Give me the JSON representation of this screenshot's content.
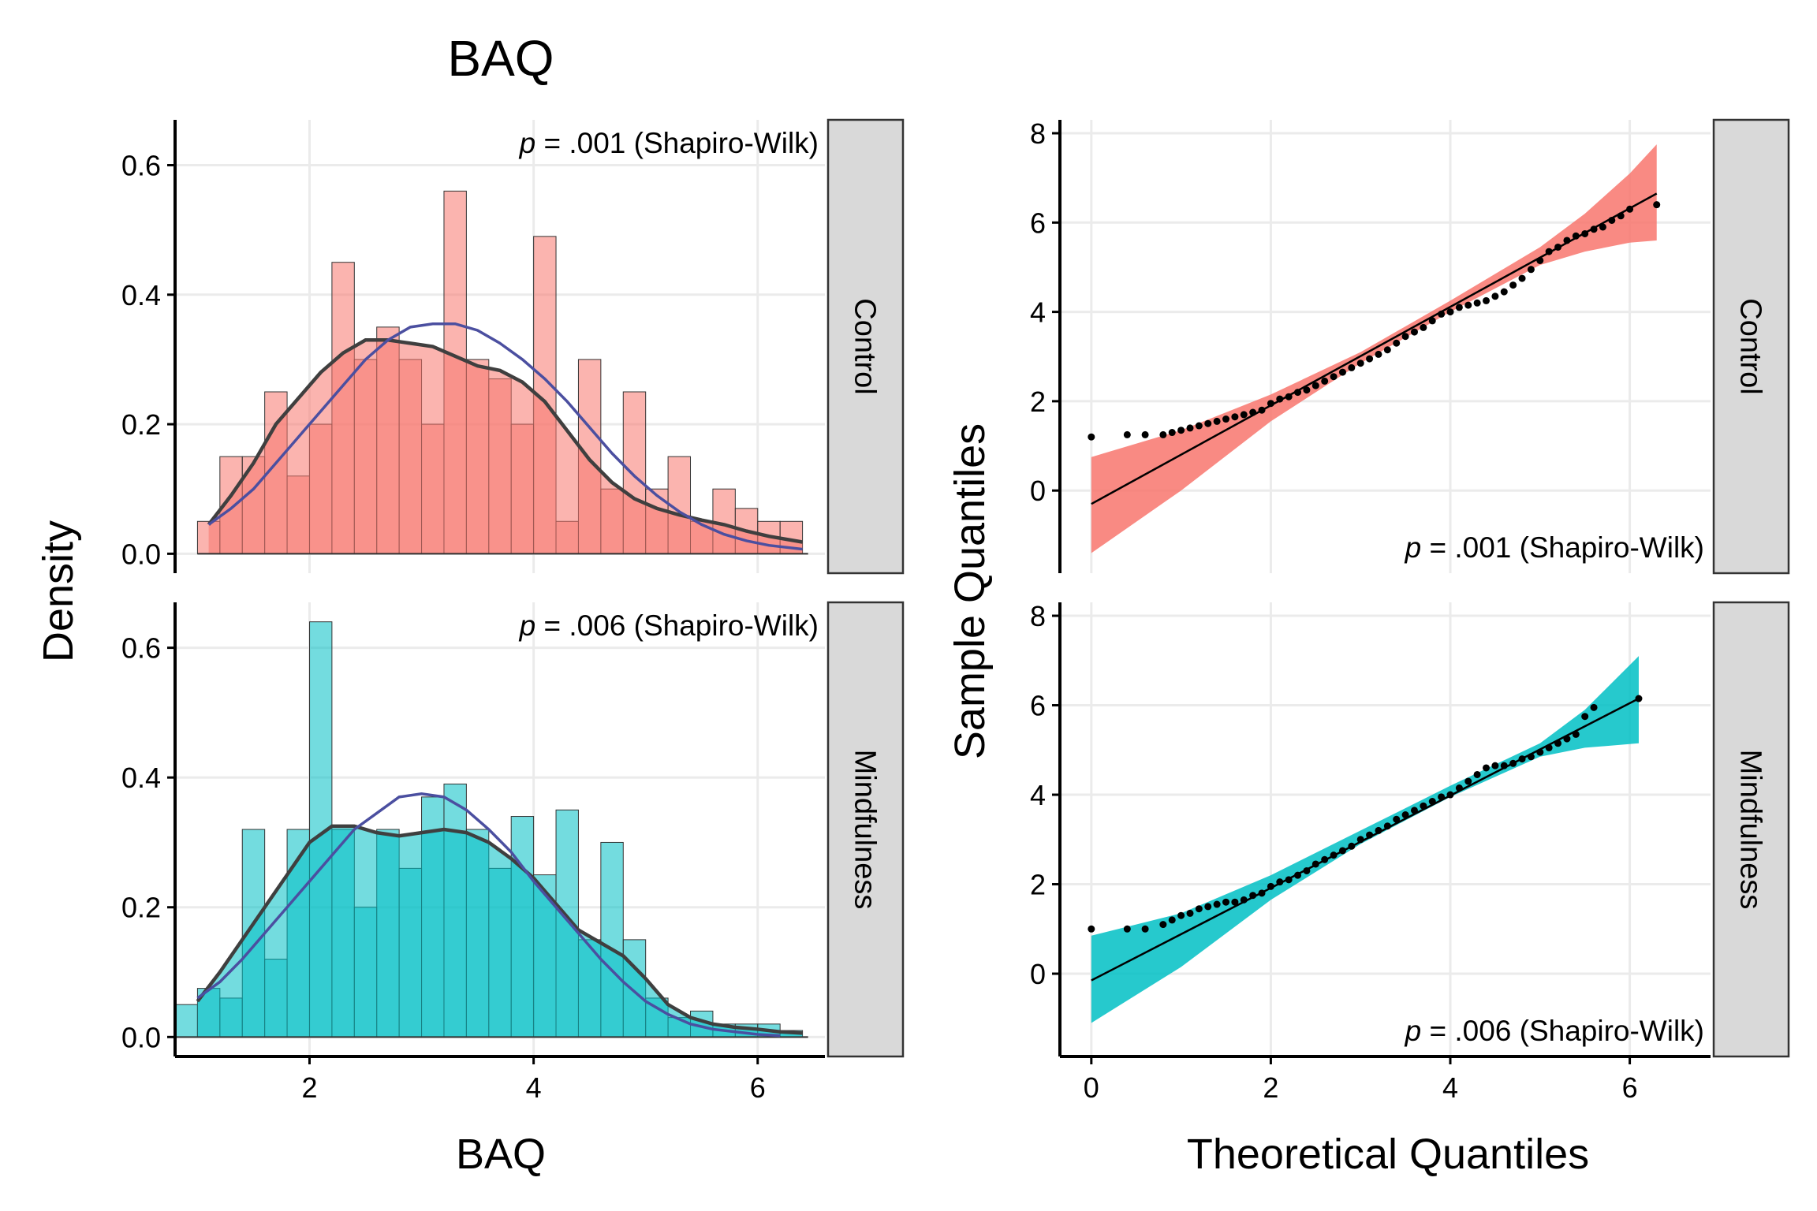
{
  "figure": {
    "left_title": "BAQ"
  },
  "colors": {
    "control": "#F8766D",
    "mindfulness": "#00BFC4",
    "normal_curve": "#4B4FA0",
    "density_curve": "#3F3F3F",
    "strip_bg": "#D9D9D9",
    "grid": "#EBEBEB"
  },
  "chart_data": [
    {
      "type": "bar",
      "subtype": "histogram with density and normal curves",
      "title": "BAQ",
      "xlabel": "BAQ",
      "ylabel": "Density",
      "xlim": [
        0.8,
        6.6
      ],
      "xticks": [
        2,
        4,
        6
      ],
      "xtick_labels": [
        "2",
        "4",
        "6"
      ],
      "yticks": [
        0.0,
        0.2,
        0.4,
        0.6
      ],
      "ytick_labels": [
        "0.0",
        "0.2",
        "0.4",
        "0.6"
      ],
      "grid": true,
      "facets": [
        {
          "label": "Control",
          "annotation": {
            "p_label": "p",
            "rest": " = .001 (Shapiro-Wilk)"
          },
          "ylim": [
            -0.03,
            0.67
          ],
          "bins": {
            "x": [
              1.1,
              1.3,
              1.5,
              1.7,
              1.9,
              2.1,
              2.3,
              2.5,
              2.7,
              2.9,
              3.1,
              3.3,
              3.5,
              3.7,
              3.9,
              4.1,
              4.3,
              4.5,
              4.7,
              4.9,
              5.1,
              5.3,
              5.5,
              5.7,
              5.9,
              6.1,
              6.3
            ],
            "values": [
              0.05,
              0.15,
              0.15,
              0.25,
              0.12,
              0.2,
              0.45,
              0.3,
              0.35,
              0.3,
              0.2,
              0.56,
              0.3,
              0.27,
              0.2,
              0.49,
              0.05,
              0.3,
              0.1,
              0.25,
              0.1,
              0.15,
              0.05,
              0.1,
              0.07,
              0.05,
              0.05
            ]
          },
          "density_curve": {
            "x": [
              1.1,
              1.3,
              1.5,
              1.7,
              1.9,
              2.1,
              2.3,
              2.5,
              2.7,
              2.9,
              3.1,
              3.3,
              3.5,
              3.7,
              3.9,
              4.1,
              4.3,
              4.5,
              4.7,
              4.9,
              5.1,
              5.3,
              5.5,
              5.7,
              5.9,
              6.1,
              6.4
            ],
            "values": [
              0.045,
              0.09,
              0.14,
              0.2,
              0.24,
              0.28,
              0.31,
              0.33,
              0.33,
              0.325,
              0.32,
              0.305,
              0.29,
              0.283,
              0.265,
              0.235,
              0.19,
              0.145,
              0.11,
              0.085,
              0.07,
              0.06,
              0.052,
              0.045,
              0.035,
              0.027,
              0.018
            ]
          },
          "normal_curve": {
            "x": [
              1.1,
              1.3,
              1.5,
              1.7,
              1.9,
              2.1,
              2.3,
              2.5,
              2.7,
              2.9,
              3.1,
              3.3,
              3.5,
              3.7,
              3.9,
              4.1,
              4.3,
              4.5,
              4.7,
              4.9,
              5.1,
              5.3,
              5.5,
              5.7,
              5.9,
              6.1,
              6.4
            ],
            "values": [
              0.045,
              0.07,
              0.1,
              0.14,
              0.18,
              0.22,
              0.26,
              0.3,
              0.33,
              0.35,
              0.355,
              0.355,
              0.345,
              0.325,
              0.3,
              0.27,
              0.235,
              0.195,
              0.155,
              0.12,
              0.09,
              0.065,
              0.045,
              0.03,
              0.02,
              0.013,
              0.007
            ]
          }
        },
        {
          "label": "Mindfulness",
          "annotation": {
            "p_label": "p",
            "rest": " = .006 (Shapiro-Wilk)"
          },
          "ylim": [
            -0.03,
            0.67
          ],
          "bins": {
            "x": [
              0.9,
              1.1,
              1.3,
              1.5,
              1.7,
              1.9,
              2.1,
              2.3,
              2.5,
              2.7,
              2.9,
              3.1,
              3.3,
              3.5,
              3.7,
              3.9,
              4.1,
              4.3,
              4.5,
              4.7,
              4.9,
              5.1,
              5.3,
              5.5,
              5.7,
              5.9,
              6.1,
              6.3
            ],
            "values": [
              0.05,
              0.075,
              0.06,
              0.32,
              0.12,
              0.32,
              0.64,
              0.32,
              0.2,
              0.32,
              0.26,
              0.37,
              0.39,
              0.32,
              0.26,
              0.34,
              0.25,
              0.35,
              0.15,
              0.3,
              0.15,
              0.06,
              0.03,
              0.04,
              0.02,
              0.02,
              0.02,
              0.01
            ]
          },
          "density_curve": {
            "x": [
              1.0,
              1.2,
              1.4,
              1.6,
              1.8,
              2.0,
              2.2,
              2.4,
              2.6,
              2.8,
              3.0,
              3.2,
              3.4,
              3.6,
              3.8,
              4.0,
              4.2,
              4.4,
              4.6,
              4.8,
              5.0,
              5.2,
              5.4,
              5.6,
              5.8,
              6.0,
              6.2,
              6.4
            ],
            "values": [
              0.055,
              0.1,
              0.15,
              0.2,
              0.25,
              0.3,
              0.325,
              0.325,
              0.315,
              0.31,
              0.315,
              0.32,
              0.315,
              0.3,
              0.275,
              0.245,
              0.205,
              0.165,
              0.145,
              0.125,
              0.09,
              0.05,
              0.03,
              0.02,
              0.015,
              0.012,
              0.008,
              0.006
            ]
          },
          "normal_curve": {
            "x": [
              1.0,
              1.2,
              1.4,
              1.6,
              1.8,
              2.0,
              2.2,
              2.4,
              2.6,
              2.8,
              3.0,
              3.2,
              3.4,
              3.6,
              3.8,
              4.0,
              4.2,
              4.4,
              4.6,
              4.8,
              5.0,
              5.2,
              5.4,
              5.6,
              5.8,
              6.0,
              6.2
            ],
            "values": [
              0.06,
              0.085,
              0.12,
              0.16,
              0.2,
              0.24,
              0.28,
              0.32,
              0.345,
              0.37,
              0.375,
              0.37,
              0.35,
              0.32,
              0.285,
              0.24,
              0.2,
              0.16,
              0.12,
              0.085,
              0.055,
              0.035,
              0.02,
              0.012,
              0.008,
              0.004,
              0.002
            ]
          }
        }
      ]
    },
    {
      "type": "scatter",
      "subtype": "normal Q-Q plot with reference line and confidence band",
      "xlabel": "Theoretical Quantiles",
      "ylabel": "Sample Quantiles",
      "xlim": [
        -0.35,
        6.9
      ],
      "xticks": [
        0,
        2,
        4,
        6
      ],
      "xtick_labels": [
        "0",
        "2",
        "4",
        "6"
      ],
      "yticks": [
        0,
        2,
        4,
        6,
        8
      ],
      "ytick_labels": [
        "0",
        "2",
        "4",
        "6",
        "8"
      ],
      "grid": true,
      "facets": [
        {
          "label": "Control",
          "annotation": {
            "p_label": "p",
            "rest": " = .001 (Shapiro-Wilk)"
          },
          "ylim": [
            -1.85,
            8.3
          ],
          "line": {
            "x": [
              0.0,
              6.3
            ],
            "y": [
              -0.3,
              6.65
            ]
          },
          "band": {
            "x": [
              0.0,
              1.0,
              2.0,
              3.0,
              4.0,
              5.0,
              5.5,
              6.0,
              6.3
            ],
            "lower": [
              -1.4,
              0.0,
              1.55,
              2.85,
              4.0,
              5.05,
              5.35,
              5.55,
              5.6
            ],
            "upper": [
              0.75,
              1.35,
              2.15,
              3.1,
              4.25,
              5.45,
              6.2,
              7.1,
              7.75
            ]
          },
          "points": {
            "x": [
              0.0,
              0.4,
              0.6,
              0.8,
              0.9,
              1.0,
              1.1,
              1.2,
              1.3,
              1.4,
              1.5,
              1.6,
              1.7,
              1.8,
              1.9,
              2.0,
              2.1,
              2.2,
              2.3,
              2.4,
              2.5,
              2.6,
              2.7,
              2.8,
              2.9,
              3.0,
              3.1,
              3.2,
              3.3,
              3.4,
              3.5,
              3.6,
              3.7,
              3.8,
              3.9,
              4.0,
              4.1,
              4.2,
              4.3,
              4.4,
              4.5,
              4.6,
              4.7,
              4.8,
              4.9,
              5.0,
              5.1,
              5.2,
              5.3,
              5.4,
              5.5,
              5.6,
              5.7,
              5.8,
              5.9,
              6.0,
              6.3
            ],
            "y": [
              1.2,
              1.25,
              1.25,
              1.25,
              1.3,
              1.35,
              1.4,
              1.45,
              1.5,
              1.55,
              1.6,
              1.65,
              1.7,
              1.75,
              1.8,
              1.95,
              2.05,
              2.1,
              2.2,
              2.25,
              2.35,
              2.45,
              2.55,
              2.65,
              2.75,
              2.85,
              2.95,
              3.05,
              3.15,
              3.3,
              3.45,
              3.55,
              3.65,
              3.8,
              3.95,
              4.0,
              4.1,
              4.15,
              4.2,
              4.25,
              4.35,
              4.45,
              4.6,
              4.75,
              4.95,
              5.15,
              5.35,
              5.45,
              5.6,
              5.7,
              5.75,
              5.85,
              5.9,
              6.05,
              6.15,
              6.3,
              6.4
            ]
          }
        },
        {
          "label": "Mindfulness",
          "annotation": {
            "p_label": "p",
            "rest": " = .006 (Shapiro-Wilk)"
          },
          "ylim": [
            -1.85,
            8.3
          ],
          "line": {
            "x": [
              0.0,
              6.1
            ],
            "y": [
              -0.15,
              6.15
            ]
          },
          "band": {
            "x": [
              0.0,
              1.0,
              2.0,
              3.0,
              4.0,
              5.0,
              5.5,
              6.1
            ],
            "lower": [
              -1.1,
              0.15,
              1.65,
              2.9,
              3.95,
              4.85,
              5.05,
              5.15
            ],
            "upper": [
              0.85,
              1.35,
              2.2,
              3.2,
              4.2,
              5.15,
              5.9,
              7.1
            ]
          },
          "points": {
            "x": [
              0.0,
              0.4,
              0.6,
              0.8,
              0.9,
              1.0,
              1.1,
              1.2,
              1.3,
              1.4,
              1.5,
              1.6,
              1.7,
              1.8,
              1.9,
              2.0,
              2.1,
              2.2,
              2.3,
              2.4,
              2.5,
              2.6,
              2.7,
              2.8,
              2.9,
              3.0,
              3.1,
              3.2,
              3.3,
              3.4,
              3.5,
              3.6,
              3.7,
              3.8,
              3.9,
              4.0,
              4.1,
              4.2,
              4.3,
              4.4,
              4.5,
              4.6,
              4.7,
              4.8,
              4.9,
              5.0,
              5.1,
              5.2,
              5.3,
              5.4,
              5.5,
              5.6,
              6.1
            ],
            "y": [
              1.0,
              1.0,
              1.0,
              1.1,
              1.2,
              1.3,
              1.35,
              1.45,
              1.5,
              1.55,
              1.6,
              1.6,
              1.65,
              1.75,
              1.8,
              1.95,
              2.05,
              2.1,
              2.2,
              2.3,
              2.45,
              2.55,
              2.65,
              2.75,
              2.85,
              3.0,
              3.1,
              3.2,
              3.3,
              3.45,
              3.55,
              3.65,
              3.75,
              3.85,
              3.95,
              4.0,
              4.15,
              4.3,
              4.45,
              4.6,
              4.65,
              4.65,
              4.7,
              4.8,
              4.85,
              4.95,
              5.05,
              5.15,
              5.25,
              5.35,
              5.75,
              5.95,
              6.15
            ]
          }
        }
      ]
    }
  ]
}
